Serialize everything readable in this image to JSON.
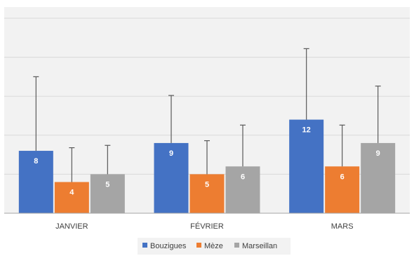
{
  "chart_data": {
    "type": "bar",
    "categories": [
      "JANVIER",
      "FÉVRIER",
      "MARS"
    ],
    "series": [
      {
        "name": "Bouzigues",
        "values": [
          8,
          9,
          12
        ],
        "error_bar_top": [
          17.5,
          15.1,
          21.1
        ],
        "color": "#4472c4"
      },
      {
        "name": "Mèze",
        "values": [
          4,
          5,
          6
        ],
        "error_bar_top": [
          8.4,
          9.3,
          11.3
        ],
        "color": "#ed7d31"
      },
      {
        "name": "Marseillan",
        "values": [
          5,
          6,
          9
        ],
        "error_bar_top": [
          8.7,
          11.3,
          16.3
        ],
        "color": "#a5a5a5"
      }
    ],
    "data_labels": true,
    "ylim": [
      0,
      25
    ],
    "y_gridlines": [
      5,
      10,
      15,
      20,
      25
    ],
    "y_tick_labels_visible": false,
    "grid": true,
    "legend_position": "bottom",
    "colors": {
      "plot_background": "#f2f2f2",
      "gridline": "#d9d9d9",
      "axis": "#a6a6a6",
      "error_bar": "#595959"
    }
  }
}
